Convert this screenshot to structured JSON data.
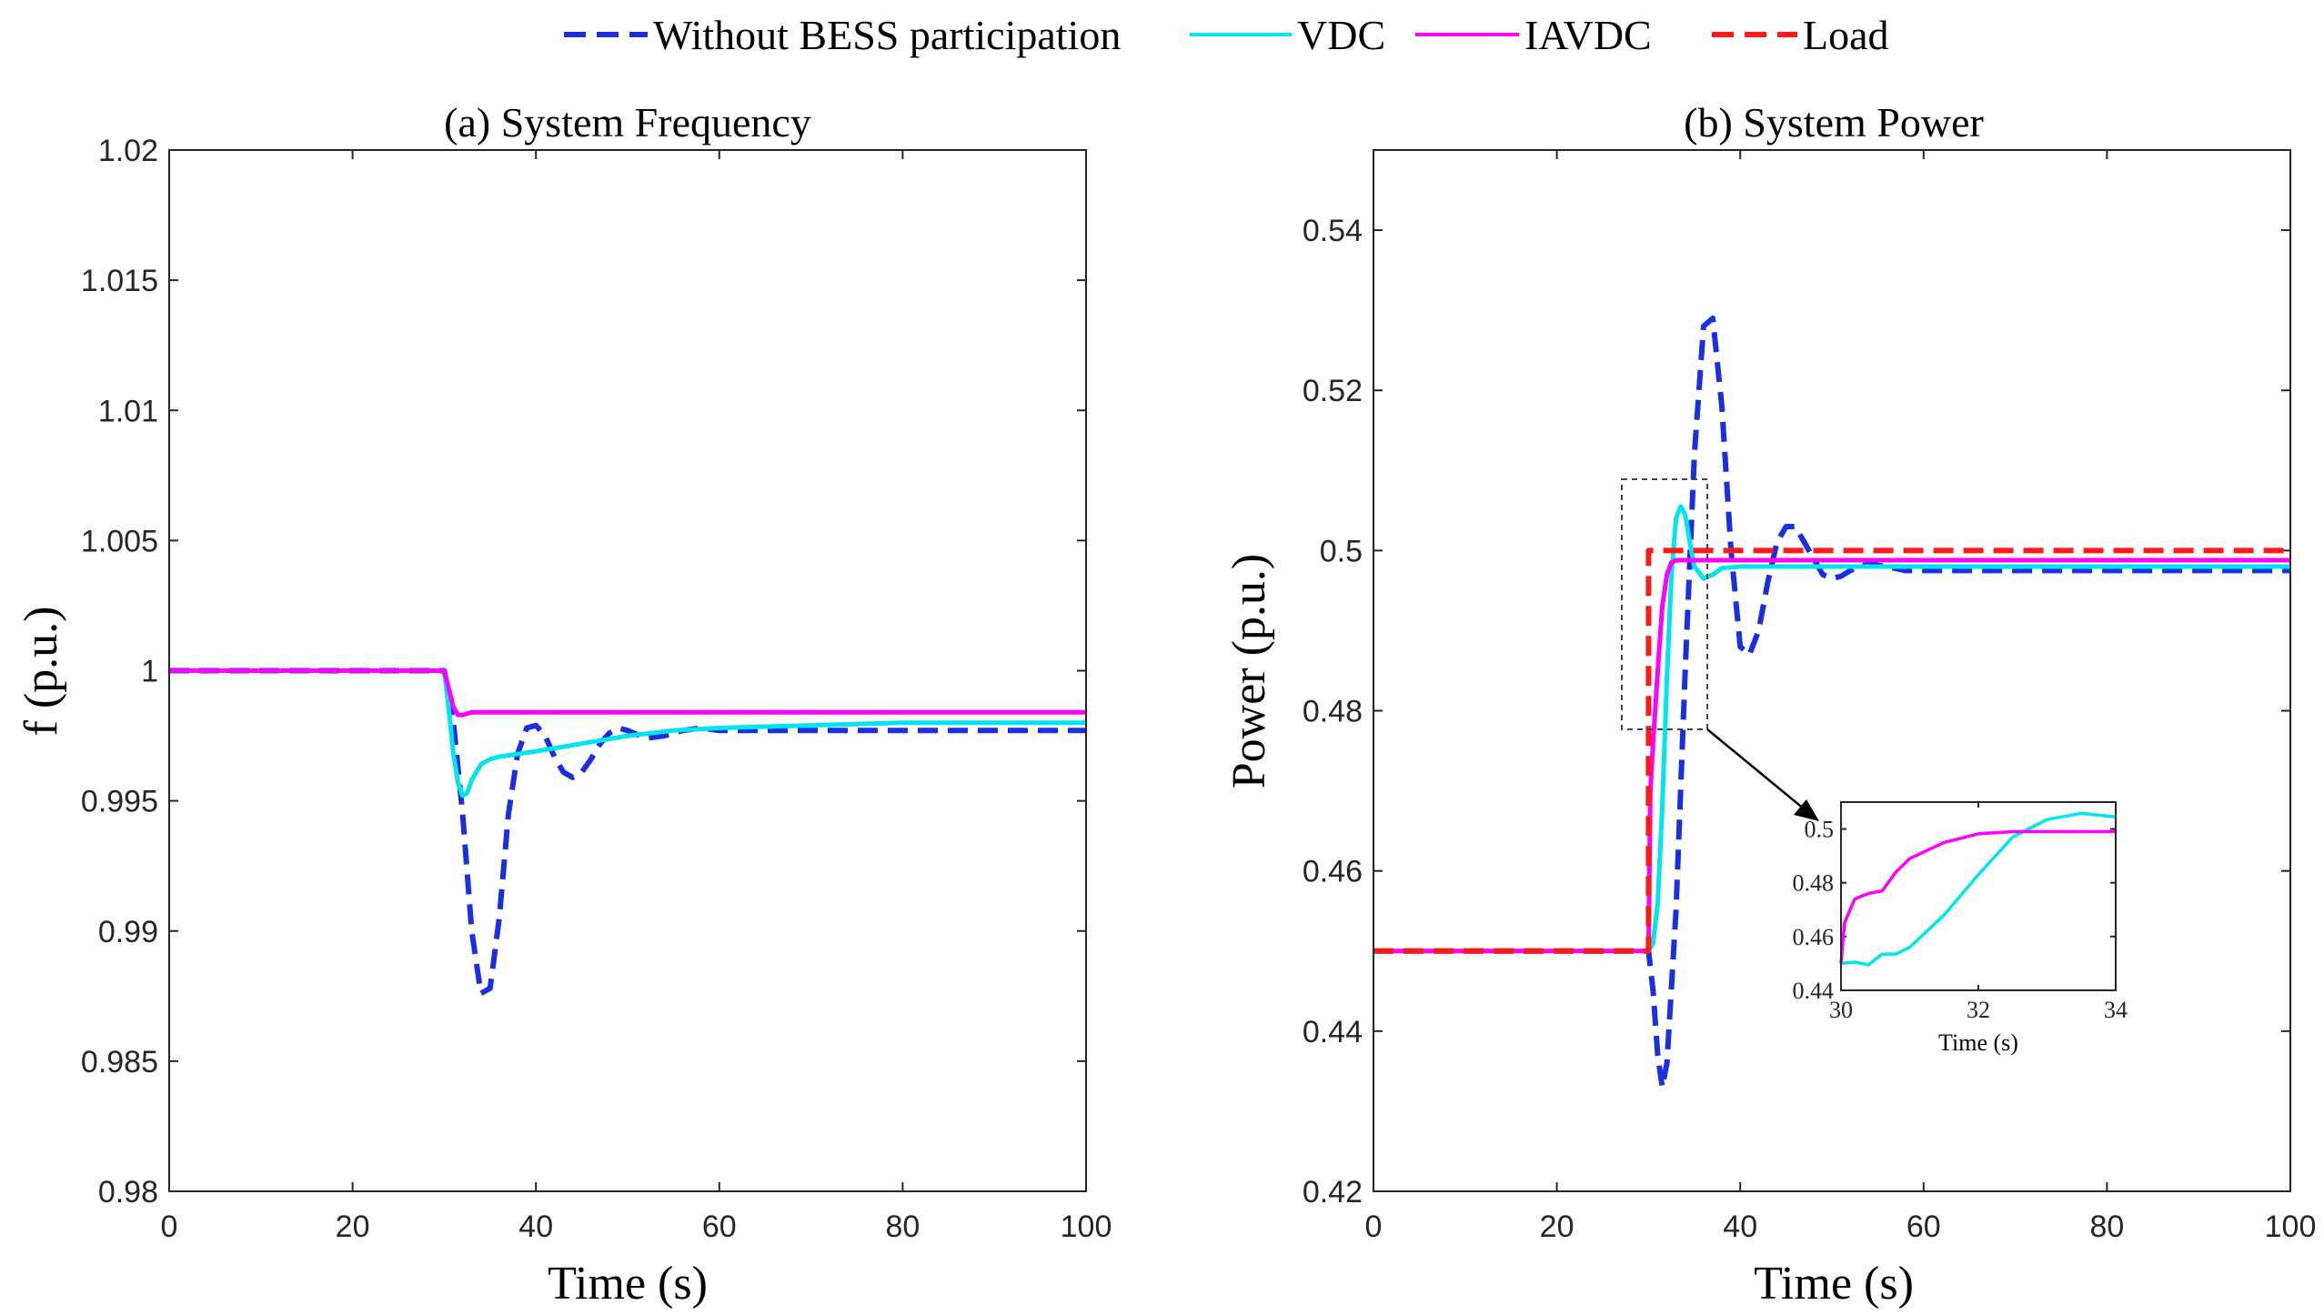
{
  "legend": {
    "items": [
      {
        "label": "Without BESS participation",
        "color": "#1a2fe0",
        "style": "dashed"
      },
      {
        "label": "VDC",
        "color": "#00e5ee",
        "style": "solid"
      },
      {
        "label": "IAVDC",
        "color": "#ff00ff",
        "style": "solid"
      },
      {
        "label": "Load",
        "color": "#ff1a1a",
        "style": "dashed"
      }
    ]
  },
  "chart_data": [
    {
      "id": "a",
      "type": "line",
      "title": "(a) System Frequency",
      "xlabel": "Time (s)",
      "ylabel": "f (p.u.)",
      "xlim": [
        0,
        100
      ],
      "ylim": [
        0.98,
        1.02
      ],
      "xticks": [
        0,
        20,
        40,
        60,
        80,
        100
      ],
      "xtick_labels": [
        "0",
        "20",
        "40",
        "60",
        "80",
        "100"
      ],
      "yticks": [
        0.98,
        0.985,
        0.99,
        0.995,
        1,
        1.005,
        1.01,
        1.015,
        1.02
      ],
      "ytick_labels": [
        "0.98",
        "0.985",
        "0.99",
        "0.995",
        "1",
        "1.005",
        "1.01",
        "1.015",
        "1.02"
      ],
      "series": [
        {
          "name": "Without BESS participation",
          "color": "#1a2fe0",
          "dashed": true,
          "x": [
            0,
            30,
            31,
            32,
            33,
            34,
            35,
            36,
            37,
            38,
            39,
            40,
            41,
            42,
            43,
            44,
            45,
            46,
            47,
            48,
            49,
            50,
            52,
            54,
            56,
            58,
            60,
            65,
            70,
            80,
            100
          ],
          "y": [
            1.0,
            1.0,
            0.998,
            0.9945,
            0.99,
            0.9876,
            0.9878,
            0.9905,
            0.9945,
            0.9968,
            0.9978,
            0.9979,
            0.9975,
            0.9967,
            0.9961,
            0.9959,
            0.9961,
            0.9966,
            0.9972,
            0.9976,
            0.9978,
            0.9977,
            0.9974,
            0.9975,
            0.9977,
            0.9978,
            0.9977,
            0.9977,
            0.9977,
            0.9977,
            0.9977
          ]
        },
        {
          "name": "VDC",
          "color": "#00e5ee",
          "dashed": false,
          "x": [
            0,
            30,
            30.5,
            31,
            31.5,
            32,
            32.5,
            33,
            34,
            35,
            36,
            38,
            40,
            45,
            50,
            55,
            60,
            70,
            80,
            90,
            100
          ],
          "y": [
            1.0,
            1.0,
            0.9985,
            0.9968,
            0.9957,
            0.9952,
            0.9953,
            0.9958,
            0.9964,
            0.9966,
            0.9967,
            0.9968,
            0.9969,
            0.9972,
            0.9975,
            0.9977,
            0.9978,
            0.9979,
            0.998,
            0.998,
            0.998
          ]
        },
        {
          "name": "IAVDC",
          "color": "#ff00ff",
          "dashed": false,
          "x": [
            0,
            30,
            30.5,
            31,
            31.5,
            32,
            33,
            35,
            40,
            60,
            100
          ],
          "y": [
            1.0,
            1.0,
            0.9993,
            0.9986,
            0.9983,
            0.9983,
            0.9984,
            0.9984,
            0.9984,
            0.9984,
            0.9984
          ]
        }
      ]
    },
    {
      "id": "b",
      "type": "line",
      "title": "(b) System Power",
      "xlabel": "Time (s)",
      "ylabel": "Power (p.u.)",
      "xlim": [
        0,
        100
      ],
      "ylim": [
        0.42,
        0.55
      ],
      "xticks": [
        0,
        20,
        40,
        60,
        80,
        100
      ],
      "xtick_labels": [
        "0",
        "20",
        "40",
        "60",
        "80",
        "100"
      ],
      "yticks": [
        0.42,
        0.44,
        0.46,
        0.48,
        0.5,
        0.52,
        0.54
      ],
      "ytick_labels": [
        "0.42",
        "0.44",
        "0.46",
        "0.48",
        "0.5",
        "0.52",
        "0.54"
      ],
      "series": [
        {
          "name": "Without BESS participation",
          "color": "#1a2fe0",
          "dashed": true,
          "x": [
            0,
            30,
            30.5,
            31,
            31.5,
            32,
            33,
            34,
            35,
            36,
            37,
            38,
            39,
            40,
            41,
            42,
            43,
            44,
            45,
            46,
            47,
            48,
            49,
            50,
            51,
            52,
            53,
            54,
            56,
            58,
            60,
            65,
            70,
            80,
            100
          ],
          "y": [
            0.45,
            0.45,
            0.445,
            0.437,
            0.433,
            0.436,
            0.455,
            0.485,
            0.512,
            0.528,
            0.529,
            0.518,
            0.5,
            0.488,
            0.487,
            0.49,
            0.496,
            0.501,
            0.503,
            0.503,
            0.501,
            0.499,
            0.497,
            0.4965,
            0.4968,
            0.4975,
            0.498,
            0.4983,
            0.498,
            0.4975,
            0.4975,
            0.4975,
            0.4975,
            0.4975,
            0.4975
          ]
        },
        {
          "name": "VDC",
          "color": "#00e5ee",
          "dashed": false,
          "x": [
            0,
            30,
            30.5,
            31,
            31.5,
            32,
            32.5,
            33,
            33.5,
            34,
            34.5,
            35,
            36,
            37,
            38,
            40,
            45,
            50,
            100
          ],
          "y": [
            0.45,
            0.45,
            0.451,
            0.456,
            0.468,
            0.484,
            0.497,
            0.504,
            0.5055,
            0.5045,
            0.501,
            0.498,
            0.4965,
            0.497,
            0.4978,
            0.498,
            0.498,
            0.498,
            0.498
          ]
        },
        {
          "name": "IAVDC",
          "color": "#ff00ff",
          "dashed": false,
          "x": [
            0,
            30,
            30.2,
            30.5,
            31,
            31.5,
            32,
            32.5,
            33,
            34,
            100
          ],
          "y": [
            0.45,
            0.45,
            0.47,
            0.476,
            0.485,
            0.493,
            0.497,
            0.4985,
            0.4988,
            0.4988,
            0.4988
          ]
        },
        {
          "name": "Load",
          "color": "#ff1a1a",
          "dashed": true,
          "x": [
            0,
            30,
            30,
            100
          ],
          "y": [
            0.45,
            0.45,
            0.5,
            0.5
          ]
        }
      ],
      "inset": {
        "xlabel": "Time (s)",
        "xlim": [
          30,
          34
        ],
        "ylim": [
          0.44,
          0.51
        ],
        "xticks": [
          30,
          32,
          34
        ],
        "xtick_labels": [
          "30",
          "32",
          "34"
        ],
        "yticks": [
          0.44,
          0.46,
          0.48,
          0.5
        ],
        "ytick_labels": [
          "0.44",
          "0.46",
          "0.48",
          "0.5"
        ],
        "series": [
          {
            "name": "VDC",
            "color": "#00e5ee",
            "x": [
              30,
              30.2,
              30.4,
              30.6,
              30.8,
              31,
              31.5,
              32,
              32.5,
              33,
              33.5,
              34
            ],
            "y": [
              0.45,
              0.4505,
              0.4495,
              0.4535,
              0.4535,
              0.456,
              0.468,
              0.483,
              0.497,
              0.5035,
              0.5058,
              0.5045
            ]
          },
          {
            "name": "IAVDC",
            "color": "#ff00ff",
            "x": [
              30,
              30.05,
              30.2,
              30.4,
              30.6,
              30.8,
              31,
              31.5,
              32,
              32.5,
              33,
              34
            ],
            "y": [
              0.45,
              0.465,
              0.474,
              0.476,
              0.477,
              0.484,
              0.489,
              0.495,
              0.4982,
              0.499,
              0.499,
              0.499
            ]
          }
        ]
      }
    }
  ]
}
